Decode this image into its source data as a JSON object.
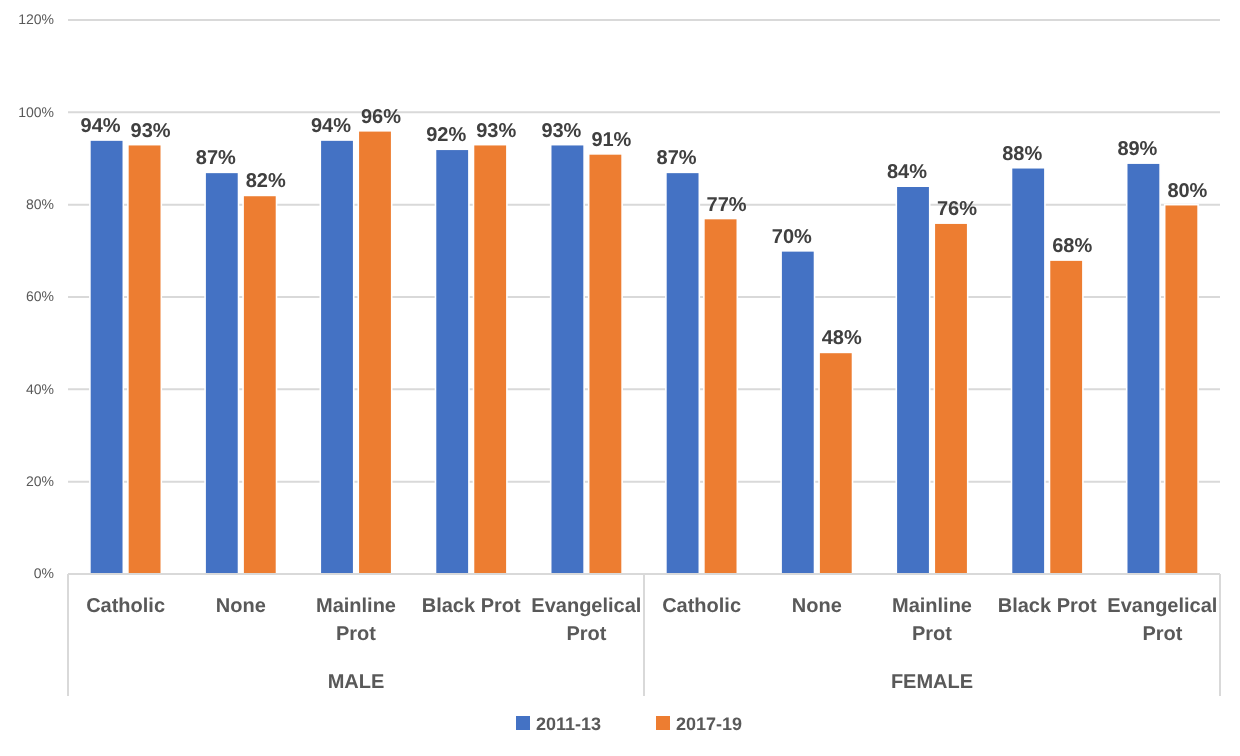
{
  "chart_data": {
    "type": "bar",
    "categories": [
      "Catholic",
      "None",
      "Mainline Prot",
      "Black Prot",
      "Evangelical Prot",
      "Catholic",
      "None",
      "Mainline Prot",
      "Black Prot",
      "Evangelical Prot"
    ],
    "series": [
      {
        "name": "2011-13",
        "color": "#4472c4",
        "values": [
          94,
          87,
          94,
          92,
          93,
          87,
          70,
          84,
          88,
          89
        ],
        "value_labels": [
          "94%",
          "87%",
          "94%",
          "92%",
          "93%",
          "87%",
          "70%",
          "84%",
          "88%",
          "89%"
        ]
      },
      {
        "name": "2017-19",
        "color": "#ed7d31",
        "values": [
          93,
          82,
          96,
          93,
          91,
          77,
          48,
          76,
          68,
          80
        ],
        "value_labels": [
          "93%",
          "82%",
          "96%",
          "93%",
          "91%",
          "77%",
          "48%",
          "76%",
          "68%",
          "80%"
        ]
      }
    ],
    "annotations": [
      "MALE",
      "FEMALE"
    ],
    "ylim": [
      0,
      120
    ],
    "yticks": [
      {
        "value": 0,
        "label": "0%"
      },
      {
        "value": 20,
        "label": "20%"
      },
      {
        "value": 40,
        "label": "40%"
      },
      {
        "value": 60,
        "label": "60%"
      },
      {
        "value": 80,
        "label": "80%"
      },
      {
        "value": 100,
        "label": "100%"
      },
      {
        "value": 120,
        "label": "120%"
      }
    ],
    "grid": "y",
    "legend": "bottom"
  }
}
